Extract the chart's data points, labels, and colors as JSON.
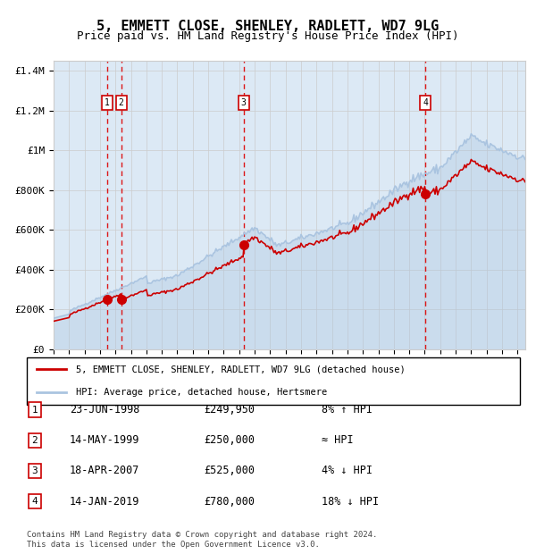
{
  "title": "5, EMMETT CLOSE, SHENLEY, RADLETT, WD7 9LG",
  "subtitle": "Price paid vs. HM Land Registry's House Price Index (HPI)",
  "ylabel": "",
  "background_color": "#ffffff",
  "plot_bg_color": "#dce9f5",
  "hpi_color": "#aac4e0",
  "price_color": "#cc0000",
  "marker_color": "#cc0000",
  "vline_color": "#dd0000",
  "grid_color": "#cccccc",
  "transactions": [
    {
      "label": "1",
      "date_str": "23-JUN-1998",
      "year": 1998.48,
      "price": 249950,
      "note": "8% ↑ HPI"
    },
    {
      "label": "2",
      "date_str": "14-MAY-1999",
      "year": 1999.37,
      "price": 250000,
      "note": "≈ HPI"
    },
    {
      "label": "3",
      "date_str": "18-APR-2007",
      "year": 2007.29,
      "price": 525000,
      "note": "4% ↓ HPI"
    },
    {
      "label": "4",
      "date_str": "14-JAN-2019",
      "year": 2019.04,
      "price": 780000,
      "note": "18% ↓ HPI"
    }
  ],
  "ylim": [
    0,
    1450000
  ],
  "xlim_start": 1995.0,
  "xlim_end": 2025.5,
  "legend_line1": "5, EMMETT CLOSE, SHENLEY, RADLETT, WD7 9LG (detached house)",
  "legend_line2": "HPI: Average price, detached house, Hertsmere",
  "footnote": "Contains HM Land Registry data © Crown copyright and database right 2024.\nThis data is licensed under the Open Government Licence v3.0.",
  "ytick_labels": [
    "£0",
    "£200K",
    "£400K",
    "£600K",
    "£800K",
    "£1M",
    "£1.2M",
    "£1.4M"
  ],
  "ytick_values": [
    0,
    200000,
    400000,
    600000,
    800000,
    1000000,
    1200000,
    1400000
  ]
}
